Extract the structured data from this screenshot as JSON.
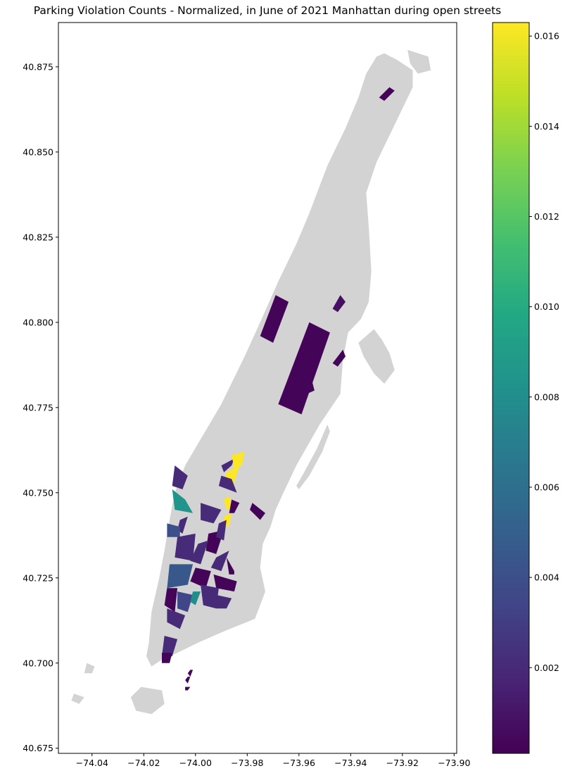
{
  "title": "Parking Violation Counts - Normalized, in June of 2021 Manhattan during open streets",
  "colors": {
    "land": "#d3d3d3",
    "axis": "#000000",
    "viridis": [
      "#440154",
      "#482475",
      "#414487",
      "#355f8d",
      "#2a788e",
      "#21918c",
      "#22a884",
      "#44bf70",
      "#7ad151",
      "#bddf26",
      "#fde725"
    ]
  },
  "map": {
    "xlim": [
      -74.053,
      -73.899
    ],
    "ylim": [
      40.6735,
      40.888
    ],
    "xticks": [
      -74.04,
      -74.02,
      -74.0,
      -73.98,
      -73.96,
      -73.94,
      -73.92,
      -73.9
    ],
    "xtick_labels": [
      "−74.04",
      "−74.02",
      "−74.00",
      "−73.98",
      "−73.96",
      "−73.94",
      "−73.92",
      "−73.90"
    ],
    "yticks": [
      40.675,
      40.7,
      40.725,
      40.75,
      40.775,
      40.8,
      40.825,
      40.85,
      40.875
    ],
    "ytick_labels": [
      "40.675",
      "40.700",
      "40.725",
      "40.750",
      "40.775",
      "40.800",
      "40.825",
      "40.850",
      "40.875"
    ]
  },
  "colorbar": {
    "range": [
      0.0001,
      0.0163
    ],
    "ticks": [
      0.002,
      0.004,
      0.006,
      0.008,
      0.01,
      0.012,
      0.014,
      0.016
    ],
    "tick_labels": [
      "0.002",
      "0.004",
      "0.006",
      "0.008",
      "0.010",
      "0.012",
      "0.014",
      "0.016"
    ]
  },
  "land": {
    "manhattan": [
      [
        -73.927,
        40.879
      ],
      [
        -73.922,
        40.877
      ],
      [
        -73.916,
        40.874
      ],
      [
        -73.916,
        40.869
      ],
      [
        -73.923,
        40.858
      ],
      [
        -73.93,
        40.847
      ],
      [
        -73.934,
        40.838
      ],
      [
        -73.933,
        40.828
      ],
      [
        -73.932,
        40.815
      ],
      [
        -73.933,
        40.806
      ],
      [
        -73.936,
        40.801
      ],
      [
        -73.941,
        40.797
      ],
      [
        -73.943,
        40.789
      ],
      [
        -73.944,
        40.779
      ],
      [
        -73.952,
        40.77
      ],
      [
        -73.961,
        40.758
      ],
      [
        -73.966,
        40.75
      ],
      [
        -73.969,
        40.745
      ],
      [
        -73.971,
        40.74
      ],
      [
        -73.974,
        40.735
      ],
      [
        -73.975,
        40.728
      ],
      [
        -73.973,
        40.721
      ],
      [
        -73.977,
        40.713
      ],
      [
        -73.99,
        40.709
      ],
      [
        -73.999,
        40.706
      ],
      [
        -74.007,
        40.703
      ],
      [
        -74.013,
        40.701
      ],
      [
        -74.017,
        40.699
      ],
      [
        -74.019,
        40.702
      ],
      [
        -74.018,
        40.706
      ],
      [
        -74.017,
        40.715
      ],
      [
        -74.014,
        40.725
      ],
      [
        -74.012,
        40.733
      ],
      [
        -74.01,
        40.742
      ],
      [
        -74.008,
        40.75
      ],
      [
        -74.004,
        40.758
      ],
      [
        -73.997,
        40.767
      ],
      [
        -73.99,
        40.776
      ],
      [
        -73.981,
        40.79
      ],
      [
        -73.975,
        40.8
      ],
      [
        -73.968,
        40.812
      ],
      [
        -73.961,
        40.823
      ],
      [
        -73.956,
        40.832
      ],
      [
        -73.949,
        40.846
      ],
      [
        -73.942,
        40.857
      ],
      [
        -73.937,
        40.866
      ],
      [
        -73.934,
        40.873
      ],
      [
        -73.93,
        40.878
      ]
    ],
    "roosevelt": [
      [
        -73.949,
        40.77
      ],
      [
        -73.953,
        40.763
      ],
      [
        -73.958,
        40.756
      ],
      [
        -73.961,
        40.752
      ],
      [
        -73.96,
        40.751
      ],
      [
        -73.956,
        40.755
      ],
      [
        -73.951,
        40.762
      ],
      [
        -73.948,
        40.768
      ]
    ],
    "randalls": [
      [
        -73.931,
        40.798
      ],
      [
        -73.928,
        40.795
      ],
      [
        -73.925,
        40.791
      ],
      [
        -73.923,
        40.786
      ],
      [
        -73.927,
        40.782
      ],
      [
        -73.931,
        40.785
      ],
      [
        -73.935,
        40.79
      ],
      [
        -73.937,
        40.794
      ]
    ],
    "marble_hill": [
      [
        -73.918,
        40.88
      ],
      [
        -73.91,
        40.878
      ],
      [
        -73.909,
        40.874
      ],
      [
        -73.914,
        40.873
      ],
      [
        -73.917,
        40.876
      ]
    ],
    "governors": [
      [
        -74.021,
        40.693
      ],
      [
        -74.013,
        40.692
      ],
      [
        -74.012,
        40.688
      ],
      [
        -74.017,
        40.685
      ],
      [
        -74.023,
        40.686
      ],
      [
        -74.025,
        40.69
      ]
    ],
    "liberty": [
      [
        -74.047,
        40.691
      ],
      [
        -74.043,
        40.69
      ],
      [
        -74.045,
        40.688
      ],
      [
        -74.048,
        40.689
      ]
    ],
    "ellis": [
      [
        -74.042,
        40.7
      ],
      [
        -74.039,
        40.699
      ],
      [
        -74.04,
        40.697
      ],
      [
        -74.043,
        40.697
      ]
    ]
  },
  "regions": [
    {
      "v": 0.0003,
      "p": [
        [
          -73.929,
          40.866
        ],
        [
          -73.925,
          40.869
        ],
        [
          -73.923,
          40.868
        ],
        [
          -73.927,
          40.865
        ]
      ]
    },
    {
      "v": 0.0003,
      "p": [
        [
          -73.975,
          40.796
        ],
        [
          -73.969,
          40.808
        ],
        [
          -73.964,
          40.806
        ],
        [
          -73.97,
          40.794
        ]
      ]
    },
    {
      "v": 0.0003,
      "p": [
        [
          -73.968,
          40.776
        ],
        [
          -73.956,
          40.8
        ],
        [
          -73.948,
          40.797
        ],
        [
          -73.959,
          40.773
        ]
      ]
    },
    {
      "v": 0.0003,
      "p": [
        [
          -73.959,
          40.781
        ],
        [
          -73.955,
          40.783
        ],
        [
          -73.954,
          40.78
        ],
        [
          -73.957,
          40.779
        ]
      ]
    },
    {
      "v": 0.0003,
      "p": [
        [
          -73.947,
          40.788
        ],
        [
          -73.943,
          40.792
        ],
        [
          -73.942,
          40.79
        ],
        [
          -73.945,
          40.787
        ]
      ]
    },
    {
      "v": 0.0008,
      "p": [
        [
          -73.947,
          40.804
        ],
        [
          -73.944,
          40.808
        ],
        [
          -73.942,
          40.806
        ],
        [
          -73.945,
          40.803
        ]
      ]
    },
    {
      "v": 0.002,
      "p": [
        [
          -73.99,
          40.758
        ],
        [
          -73.985,
          40.76
        ],
        [
          -73.986,
          40.758
        ],
        [
          -73.989,
          40.756
        ]
      ]
    },
    {
      "v": 0.0163,
      "p": [
        [
          -73.986,
          40.761
        ],
        [
          -73.981,
          40.762
        ],
        [
          -73.982,
          40.758
        ],
        [
          -73.985,
          40.757
        ]
      ]
    },
    {
      "v": 0.0163,
      "p": [
        [
          -73.988,
          40.756
        ],
        [
          -73.983,
          40.758
        ],
        [
          -73.985,
          40.753
        ],
        [
          -73.989,
          40.753
        ]
      ]
    },
    {
      "v": 0.002,
      "p": [
        [
          -73.991,
          40.752
        ],
        [
          -73.984,
          40.75
        ],
        [
          -73.986,
          40.754
        ],
        [
          -73.99,
          40.755
        ]
      ]
    },
    {
      "v": 0.002,
      "p": [
        [
          -74.008,
          40.758
        ],
        [
          -74.003,
          40.755
        ],
        [
          -74.005,
          40.751
        ],
        [
          -74.009,
          40.752
        ]
      ]
    },
    {
      "v": 0.0085,
      "p": [
        [
          -74.009,
          40.751
        ],
        [
          -74.004,
          40.748
        ],
        [
          -74.001,
          40.744
        ],
        [
          -74.008,
          40.745
        ]
      ]
    },
    {
      "v": 0.0163,
      "p": [
        [
          -73.989,
          40.748
        ],
        [
          -73.987,
          40.749
        ],
        [
          -73.985,
          40.745
        ],
        [
          -73.988,
          40.745
        ]
      ]
    },
    {
      "v": 0.0163,
      "p": [
        [
          -73.989,
          40.743
        ],
        [
          -73.986,
          40.744
        ],
        [
          -73.987,
          40.74
        ],
        [
          -73.989,
          40.74
        ]
      ]
    },
    {
      "v": 0.0003,
      "p": [
        [
          -73.986,
          40.748
        ],
        [
          -73.983,
          40.747
        ],
        [
          -73.985,
          40.744
        ],
        [
          -73.987,
          40.744
        ]
      ]
    },
    {
      "v": 0.002,
      "p": [
        [
          -73.998,
          40.747
        ],
        [
          -73.99,
          40.745
        ],
        [
          -73.993,
          40.741
        ],
        [
          -73.998,
          40.742
        ]
      ]
    },
    {
      "v": 0.0003,
      "p": [
        [
          -73.978,
          40.747
        ],
        [
          -73.973,
          40.744
        ],
        [
          -73.975,
          40.742
        ],
        [
          -73.979,
          40.745
        ]
      ]
    },
    {
      "v": 0.002,
      "p": [
        [
          -74.006,
          40.742
        ],
        [
          -74.003,
          40.743
        ],
        [
          -74.005,
          40.738
        ],
        [
          -74.007,
          40.739
        ]
      ]
    },
    {
      "v": 0.004,
      "p": [
        [
          -74.011,
          40.741
        ],
        [
          -74.006,
          40.74
        ],
        [
          -74.006,
          40.737
        ],
        [
          -74.011,
          40.737
        ]
      ]
    },
    {
      "v": 0.0003,
      "p": [
        [
          -73.995,
          40.738
        ],
        [
          -73.989,
          40.739
        ],
        [
          -73.992,
          40.732
        ],
        [
          -73.996,
          40.733
        ]
      ]
    },
    {
      "v": 0.002,
      "p": [
        [
          -73.991,
          40.741
        ],
        [
          -73.988,
          40.742
        ],
        [
          -73.989,
          40.736
        ],
        [
          -73.992,
          40.737
        ]
      ]
    },
    {
      "v": 0.002,
      "p": [
        [
          -74.007,
          40.737
        ],
        [
          -74.0,
          40.738
        ],
        [
          -74.001,
          40.73
        ],
        [
          -74.008,
          40.731
        ]
      ]
    },
    {
      "v": 0.002,
      "p": [
        [
          -73.999,
          40.735
        ],
        [
          -73.995,
          40.736
        ],
        [
          -73.998,
          40.729
        ],
        [
          -74.002,
          40.73
        ]
      ]
    },
    {
      "v": 0.002,
      "p": [
        [
          -73.992,
          40.731
        ],
        [
          -73.987,
          40.733
        ],
        [
          -73.99,
          40.727
        ],
        [
          -73.994,
          40.728
        ]
      ]
    },
    {
      "v": 0.0003,
      "p": [
        [
          -73.988,
          40.731
        ],
        [
          -73.985,
          40.727
        ],
        [
          -73.985,
          40.726
        ],
        [
          -73.987,
          40.726
        ]
      ]
    },
    {
      "v": 0.0045,
      "p": [
        [
          -74.01,
          40.729
        ],
        [
          -74.001,
          40.729
        ],
        [
          -74.003,
          40.723
        ],
        [
          -74.011,
          40.722
        ]
      ]
    },
    {
      "v": 0.0003,
      "p": [
        [
          -74.0,
          40.728
        ],
        [
          -73.994,
          40.727
        ],
        [
          -73.996,
          40.722
        ],
        [
          -74.002,
          40.724
        ]
      ]
    },
    {
      "v": 0.0003,
      "p": [
        [
          -73.993,
          40.726
        ],
        [
          -73.984,
          40.724
        ],
        [
          -73.985,
          40.721
        ],
        [
          -73.992,
          40.722
        ]
      ]
    },
    {
      "v": 0.0003,
      "p": [
        [
          -74.011,
          40.722
        ],
        [
          -74.007,
          40.722
        ],
        [
          -74.008,
          40.715
        ],
        [
          -74.012,
          40.717
        ]
      ]
    },
    {
      "v": 0.0035,
      "p": [
        [
          -74.007,
          40.721
        ],
        [
          -74.001,
          40.72
        ],
        [
          -74.003,
          40.715
        ],
        [
          -74.007,
          40.716
        ]
      ]
    },
    {
      "v": 0.008,
      "p": [
        [
          -74.001,
          40.721
        ],
        [
          -73.998,
          40.721
        ],
        [
          -74.0,
          40.717
        ],
        [
          -74.002,
          40.718
        ]
      ]
    },
    {
      "v": 0.002,
      "p": [
        [
          -73.998,
          40.723
        ],
        [
          -73.991,
          40.722
        ],
        [
          -73.992,
          40.716
        ],
        [
          -73.997,
          40.717
        ]
      ]
    },
    {
      "v": 0.002,
      "p": [
        [
          -73.992,
          40.72
        ],
        [
          -73.986,
          40.719
        ],
        [
          -73.988,
          40.716
        ],
        [
          -73.992,
          40.716
        ]
      ]
    },
    {
      "v": 0.002,
      "p": [
        [
          -74.011,
          40.716
        ],
        [
          -74.004,
          40.714
        ],
        [
          -74.006,
          40.71
        ],
        [
          -74.011,
          40.712
        ]
      ]
    },
    {
      "v": 0.002,
      "p": [
        [
          -74.012,
          40.708
        ],
        [
          -74.007,
          40.707
        ],
        [
          -74.009,
          40.702
        ],
        [
          -74.013,
          40.702
        ]
      ]
    },
    {
      "v": 0.0003,
      "p": [
        [
          -74.013,
          40.703
        ],
        [
          -74.009,
          40.703
        ],
        [
          -74.01,
          40.7
        ],
        [
          -74.013,
          40.7
        ]
      ]
    },
    {
      "v": 0.0003,
      "p": [
        [
          -74.002,
          40.698
        ],
        [
          -74.001,
          40.698
        ],
        [
          -74.002,
          40.696
        ],
        [
          -74.003,
          40.697
        ]
      ]
    },
    {
      "v": 0.0003,
      "p": [
        [
          -74.003,
          40.696
        ],
        [
          -74.002,
          40.696
        ],
        [
          -74.003,
          40.694
        ],
        [
          -74.004,
          40.695
        ]
      ]
    },
    {
      "v": 0.0003,
      "p": [
        [
          -74.004,
          40.693
        ],
        [
          -74.002,
          40.693
        ],
        [
          -74.003,
          40.692
        ],
        [
          -74.004,
          40.692
        ]
      ]
    }
  ]
}
